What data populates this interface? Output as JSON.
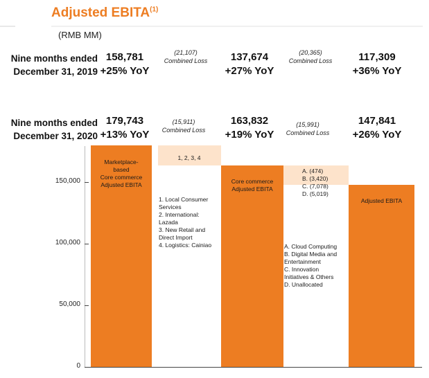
{
  "header": {
    "title": "Adjusted EBITA",
    "title_sup": "(1)",
    "unit": "(RMB MM)"
  },
  "rows": [
    {
      "label_line1": "Nine months ended",
      "label_line2": "December 31, 2019",
      "core_commerce": "158,781",
      "core_commerce_growth": "+25% YoY",
      "combined_loss_1": "(21,107)",
      "combined_loss_1_label": "Combined Loss",
      "core_commerce_ebita": "137,674",
      "core_commerce_ebita_growth": "+27% YoY",
      "combined_loss_2": "(20,365)",
      "combined_loss_2_label": "Combined Loss",
      "adjusted_ebita": "117,309",
      "adjusted_ebita_growth": "+36% YoY"
    },
    {
      "label_line1": "Nine months ended",
      "label_line2": "December 31, 2020",
      "core_commerce": "179,743",
      "core_commerce_growth": "+13% YoY",
      "combined_loss_1": "(15,911)",
      "combined_loss_1_label": "Combined Loss",
      "core_commerce_ebita": "163,832",
      "core_commerce_ebita_growth": "+19% YoY",
      "combined_loss_2": "(15,991)",
      "combined_loss_2_label": "Combined Loss",
      "adjusted_ebita": "147,841",
      "adjusted_ebita_growth": "+26% YoY"
    }
  ],
  "bar_labels": {
    "bar1": [
      "Marketplace-",
      "based",
      "Core commerce",
      "Adjusted EBITA"
    ],
    "bar2": "1, 2, 3, 4",
    "bar3": [
      "Core commerce",
      "Adjusted EBITA"
    ],
    "bar4": [
      "A. (474)",
      "B. (3,420)",
      "C. (7,078)",
      "D. (5,019)"
    ],
    "bar5": "Adjusted EBITA"
  },
  "notes": {
    "bar2": [
      "1. Local Consumer",
      "Services",
      "2. International:",
      "Lazada",
      "3. New Retail and",
      "Direct Import",
      "4. Logistics: Cainiao"
    ],
    "bar4": [
      "A. Cloud Computing",
      "B. Digital Media and",
      "Entertainment",
      "C. Innovation",
      "Initiatives & Others",
      "D. Unallocated"
    ]
  },
  "chart_data": {
    "type": "bar",
    "title": "Adjusted EBITA",
    "ylabel": "RMB MM",
    "ylim": [
      0,
      180000
    ],
    "yticks": [
      {
        "value": 0,
        "label": "0"
      },
      {
        "value": 50000,
        "label": "50,000"
      },
      {
        "value": 100000,
        "label": "100,000"
      },
      {
        "value": 150000,
        "label": "150,000"
      }
    ],
    "categories": [
      "Marketplace-based Core commerce Adjusted EBITA",
      "Combined Loss (1, 2, 3, 4)",
      "Core commerce Adjusted EBITA",
      "Combined Loss (A-D)",
      "Adjusted EBITA"
    ],
    "bars": [
      {
        "name": "bar-marketplace",
        "base": 0,
        "top": 179743,
        "kind": "total"
      },
      {
        "name": "bar-loss-1",
        "base": 163832,
        "top": 179743,
        "kind": "decrease"
      },
      {
        "name": "bar-core-commerce",
        "base": 0,
        "top": 163832,
        "kind": "total"
      },
      {
        "name": "bar-loss-2",
        "base": 147841,
        "top": 163832,
        "kind": "decrease"
      },
      {
        "name": "bar-adjusted",
        "base": 0,
        "top": 147841,
        "kind": "total"
      }
    ],
    "colors": {
      "total": "#ed7d22",
      "highlight": "#fde3cb",
      "text": "#ed7d22"
    }
  }
}
